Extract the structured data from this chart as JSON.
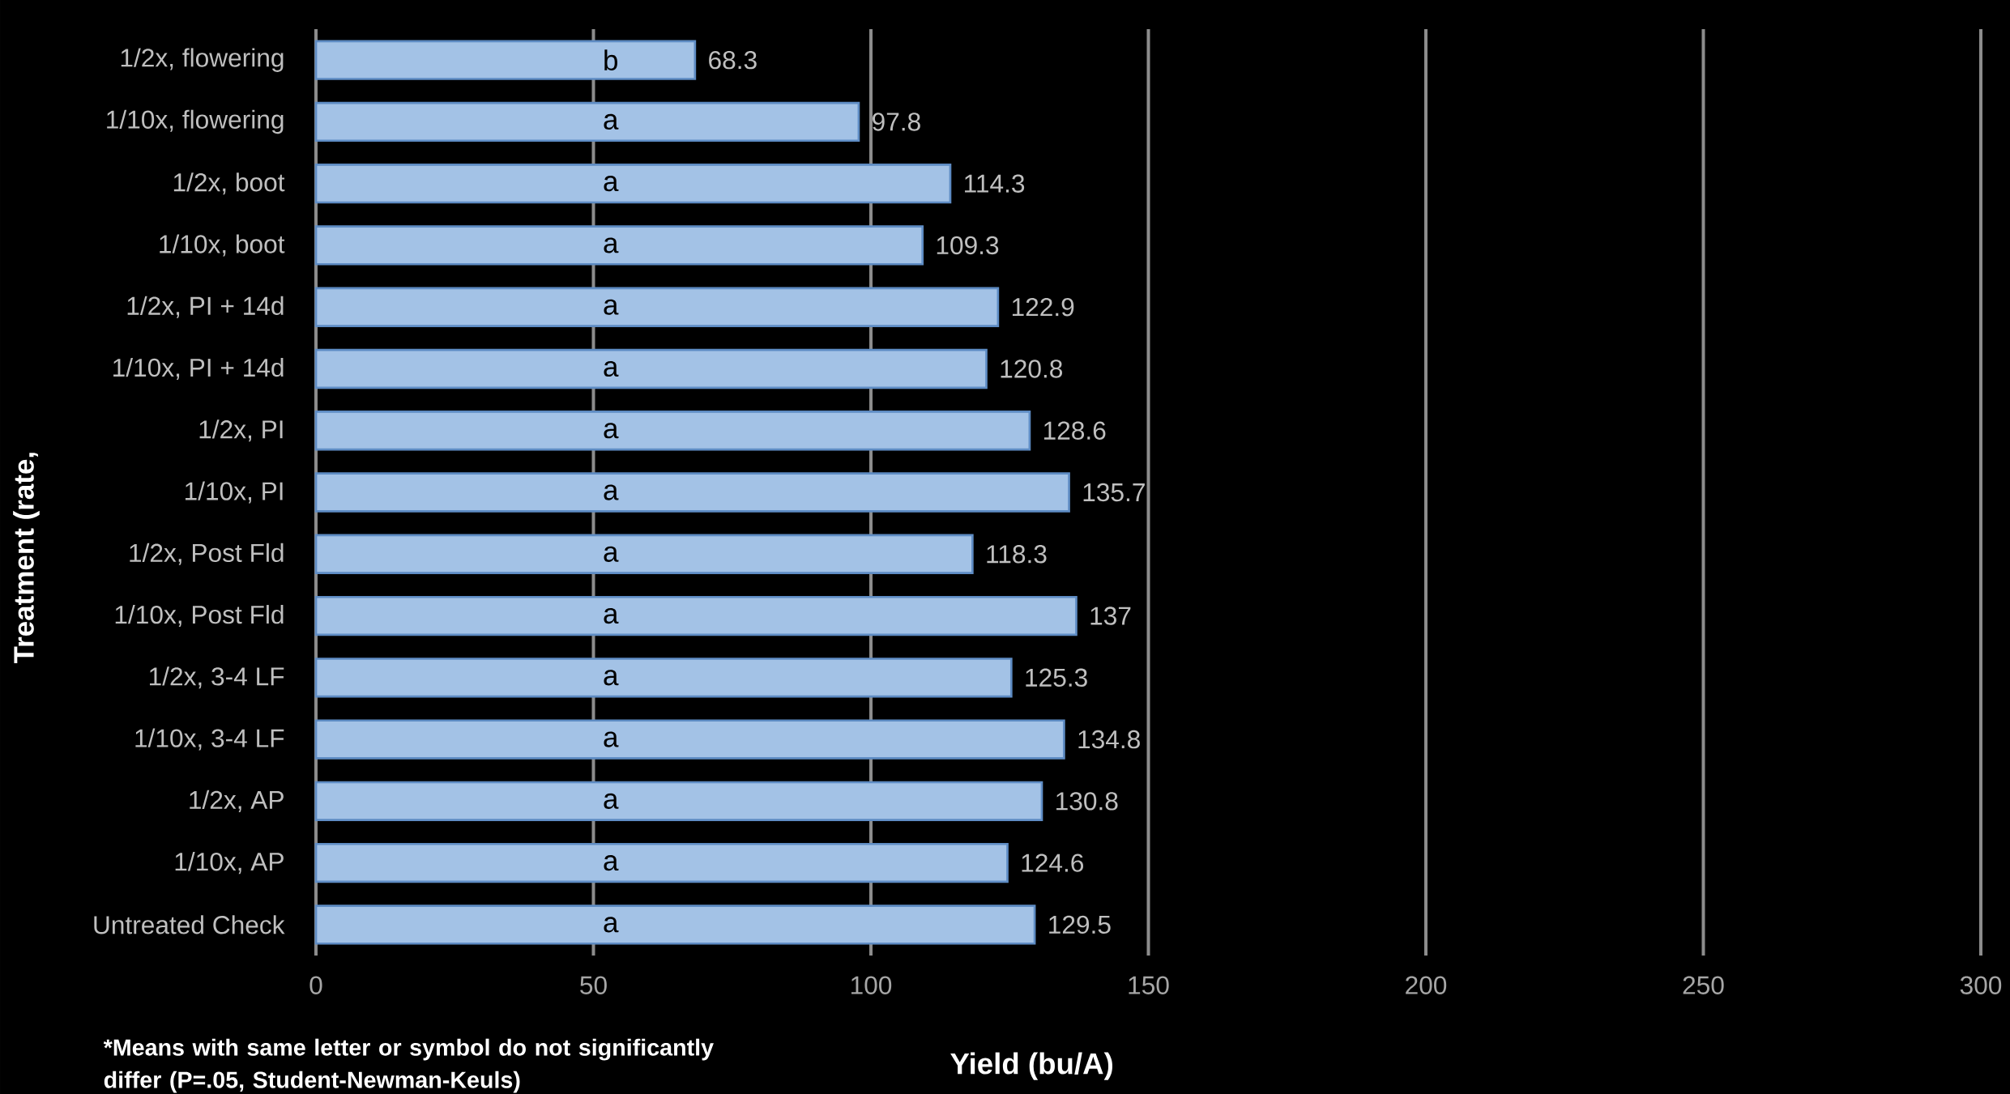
{
  "chart_data": {
    "type": "bar",
    "orientation": "horizontal",
    "categories": [
      "1/2x, flowering",
      "1/10x, flowering",
      "1/2x, boot",
      "1/10x, boot",
      "1/2x, PI + 14d",
      "1/10x, PI + 14d",
      "1/2x, PI",
      "1/10x, PI",
      "1/2x, Post Fld",
      "1/10x, Post Fld",
      "1/2x, 3-4 LF",
      "1/10x, 3-4 LF",
      "1/2x, AP",
      "1/10x, AP",
      "Untreated Check"
    ],
    "values": [
      68.3,
      97.8,
      114.3,
      109.3,
      122.9,
      120.8,
      128.6,
      135.7,
      118.3,
      137,
      125.3,
      134.8,
      130.8,
      124.6,
      129.5
    ],
    "color": "#a3c2e6",
    "data_labels": true,
    "xlim": [
      0,
      300
    ],
    "xticks": [
      0,
      50,
      100,
      150,
      200,
      250,
      300
    ],
    "grid": "x",
    "xlabel": "Yield (bu/A)",
    "ylabel": "Treatment (rate,",
    "annotations": [
      "b",
      "a",
      "a",
      "a",
      "a",
      "a",
      "a",
      "a",
      "a",
      "a",
      "a",
      "a",
      "a",
      "a",
      "a",
      "*Means with same letter or symbol do not significantly differ (P=.05, Student-Newman-Keuls)"
    ]
  }
}
